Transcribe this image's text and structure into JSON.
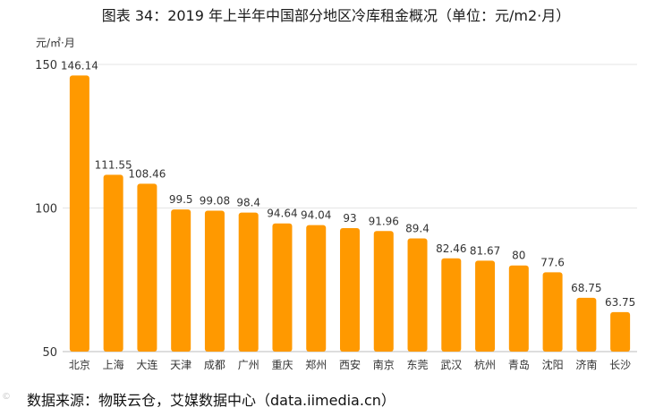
{
  "title": "图表 34：2019 年上半年中国部分地区冷库租金概况（单位：元/m2·月）",
  "source": "数据来源：物联云仓，艾媒数据中心（data.iimedia.cn）",
  "watermark": "©",
  "colors": {
    "bar": "#FF9900",
    "grid": "#E6E6E6",
    "axis": "#BBBBBB",
    "text": "#333333"
  },
  "chart_data": {
    "type": "bar",
    "title": "图表 34：2019 年上半年中国部分地区冷库租金概况（单位：元/m2·月）",
    "ylabel": "元/㎡·月",
    "xlabel": "",
    "ylim": [
      50,
      150
    ],
    "yticks": [
      50,
      100,
      150
    ],
    "grid": true,
    "categories": [
      "北京",
      "上海",
      "大连",
      "天津",
      "成都",
      "广州",
      "重庆",
      "郑州",
      "西安",
      "南京",
      "东莞",
      "武汉",
      "杭州",
      "青岛",
      "沈阳",
      "济南",
      "长沙"
    ],
    "values": [
      146.14,
      111.55,
      108.46,
      99.5,
      99.08,
      98.4,
      94.64,
      94.04,
      93,
      91.96,
      89.4,
      82.46,
      81.67,
      80,
      77.6,
      68.75,
      63.75
    ],
    "value_labels": [
      "146.14",
      "111.55",
      "108.46",
      "99.5",
      "99.08",
      "98.4",
      "94.64",
      "94.04",
      "93",
      "91.96",
      "89.4",
      "82.46",
      "81.67",
      "80",
      "77.6",
      "68.75",
      "63.75"
    ]
  }
}
